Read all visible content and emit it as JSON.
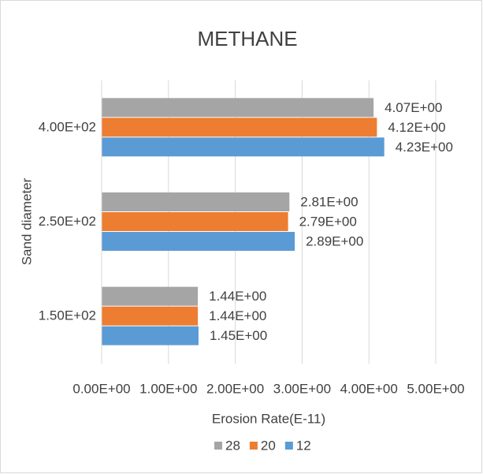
{
  "chart_data": {
    "type": "hbar",
    "title": "METHANE",
    "x_label": "Erosion Rate(E-11)",
    "y_label": "Sand diameter",
    "categories": [
      "1.50E+02",
      "2.50E+02",
      "4.00E+02"
    ],
    "series": [
      {
        "name": "28",
        "color": "#a5a5a5",
        "values": [
          1.44,
          2.81,
          4.07
        ],
        "value_labels": [
          "1.44E+00",
          "2.81E+00",
          "4.07E+00"
        ]
      },
      {
        "name": "20",
        "color": "#ed7d31",
        "values": [
          1.44,
          2.79,
          4.12
        ],
        "value_labels": [
          "1.44E+00",
          "2.79E+00",
          "4.12E+00"
        ]
      },
      {
        "name": "12",
        "color": "#5b9bd5",
        "values": [
          1.45,
          2.89,
          4.23
        ],
        "value_labels": [
          "1.45E+00",
          "2.89E+00",
          "4.23E+00"
        ]
      }
    ],
    "xlim": [
      0,
      5
    ],
    "xticks": [
      {
        "value": 0,
        "label": "0.00E+00"
      },
      {
        "value": 1,
        "label": "1.00E+00"
      },
      {
        "value": 2,
        "label": "2.00E+00"
      },
      {
        "value": 3,
        "label": "3.00E+00"
      },
      {
        "value": 4,
        "label": "4.00E+00"
      },
      {
        "value": 5,
        "label": "5.00E+00"
      }
    ],
    "grid": true,
    "legend": "bottom"
  }
}
